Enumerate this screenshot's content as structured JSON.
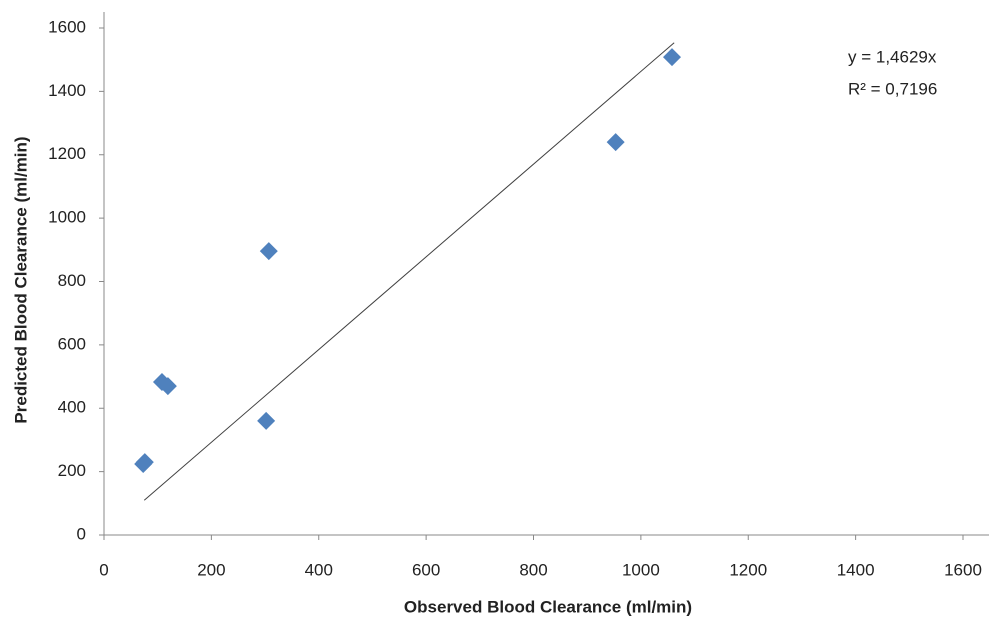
{
  "chart_data": {
    "type": "scatter",
    "x_label": "Observed Blood Clearance (ml/min)",
    "y_label": "Predicted  Blood Clearance (ml/min)",
    "x": [
      1058,
      953,
      307,
      108,
      119,
      302,
      76,
      73
    ],
    "values": [
      1508,
      1240,
      896,
      483,
      470,
      360,
      230,
      224
    ],
    "color": "#4f81bd",
    "xlim": [
      0,
      1600
    ],
    "xticks": [
      0,
      200,
      400,
      600,
      800,
      1000,
      1200,
      1400,
      1600
    ],
    "ylim": [
      0,
      1600
    ],
    "yticks": [
      0,
      200,
      400,
      600,
      800,
      1000,
      1200,
      1400,
      1600
    ],
    "grid": false,
    "trendline": {
      "label": "y = 1,4629x",
      "slope": 1.4629,
      "xlim": [
        75,
        1062
      ],
      "color": "#404040"
    },
    "annotations": [
      "R² = 0,7196"
    ]
  }
}
